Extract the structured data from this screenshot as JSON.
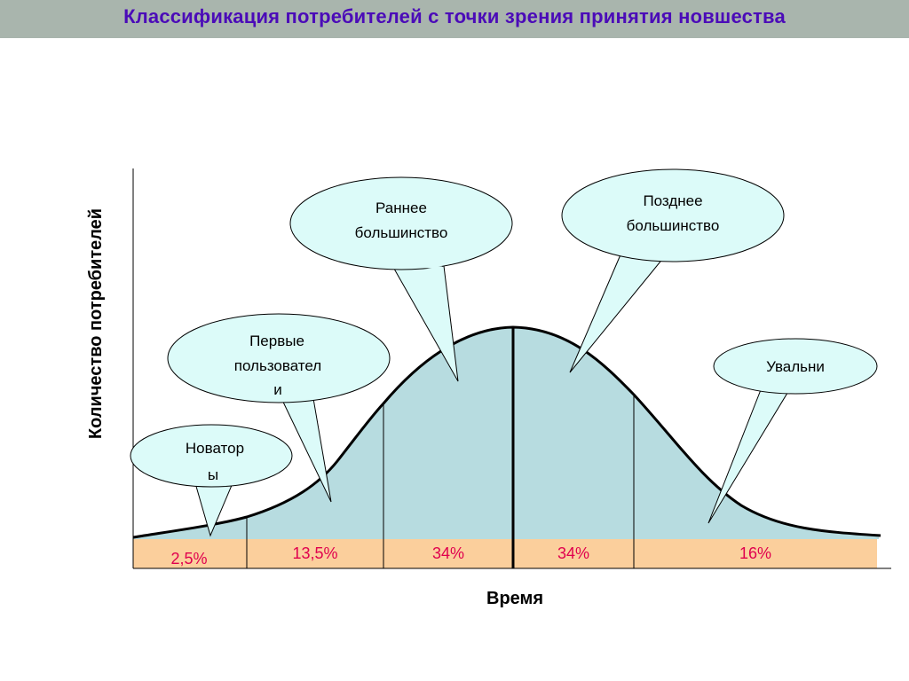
{
  "title": "Классификация потребителей с точки зрения принятия новшества",
  "axes": {
    "y_label": "Количество потребителей",
    "x_label": "Время"
  },
  "segments": [
    {
      "name_lines": [
        "Новатор",
        "ы"
      ],
      "percent": "2,5%"
    },
    {
      "name_lines": [
        "Первые",
        "пользовател",
        "и"
      ],
      "percent": "13,5%"
    },
    {
      "name_lines": [
        "Раннее",
        "большинство"
      ],
      "percent": "34%"
    },
    {
      "name_lines": [
        "Позднее",
        "большинство"
      ],
      "percent": "34%"
    },
    {
      "name_lines": [
        "Увальни"
      ],
      "percent": "16%"
    }
  ],
  "colors": {
    "title_bar": "#a9b5ad",
    "title_text": "#4b0bb8",
    "area_fill": "#b7dce0",
    "baseline_band": "#fbcf9c",
    "bubble_fill": "#dcfbf9",
    "percent_text": "#e0004e"
  }
}
